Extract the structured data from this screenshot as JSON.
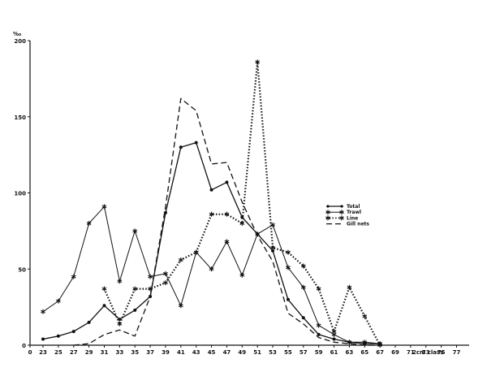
{
  "chart_data": {
    "type": "line",
    "y_unit_label": "‰",
    "xlabel": "2cm class",
    "x_ticks": [
      0,
      23,
      25,
      27,
      29,
      31,
      33,
      35,
      37,
      39,
      41,
      43,
      45,
      47,
      49,
      51,
      53,
      55,
      57,
      59,
      61,
      63,
      65,
      67,
      69,
      71,
      73,
      75,
      77
    ],
    "x_tick_labels": [
      "0",
      "23",
      "25",
      "27",
      "29",
      "31",
      "33",
      "35",
      "37",
      "39",
      "41",
      "43",
      "45",
      "47",
      "49",
      "51",
      "53",
      "55",
      "57",
      "59",
      "61",
      "63",
      "65",
      "67",
      "69",
      "71",
      "73",
      "75",
      "77"
    ],
    "y_ticks": [
      0,
      50,
      100,
      150,
      200
    ],
    "y_tick_labels": [
      "0",
      "50",
      "100",
      "150",
      "200"
    ],
    "ylim": [
      0,
      200
    ],
    "legend": [
      {
        "label": "Total",
        "style": "solid-dot"
      },
      {
        "label": "Trawl",
        "style": "solid-star"
      },
      {
        "label": "Line",
        "style": "dotted-star"
      },
      {
        "label": "Gill nets",
        "style": "dashed"
      }
    ],
    "series": [
      {
        "key": "total",
        "style": "solid-dot",
        "x": [
          23,
          25,
          27,
          29,
          31,
          33,
          35,
          37,
          39,
          41,
          43,
          45,
          47,
          49,
          51,
          53,
          55,
          57,
          59,
          61,
          63,
          65,
          67
        ],
        "values": [
          4,
          6,
          9,
          15,
          26,
          17,
          23,
          32,
          87,
          130,
          133,
          102,
          107,
          84,
          73,
          62,
          30,
          18,
          7,
          4,
          2,
          1,
          1
        ]
      },
      {
        "key": "trawl",
        "style": "solid-star",
        "x": [
          23,
          25,
          27,
          29,
          31,
          33,
          35,
          37,
          39,
          41,
          43,
          45,
          47,
          49,
          51,
          53,
          55,
          57,
          59,
          61,
          63,
          65,
          67
        ],
        "values": [
          22,
          29,
          45,
          80,
          91,
          42,
          75,
          45,
          47,
          26,
          61,
          50,
          68,
          46,
          73,
          79,
          51,
          38,
          13,
          7,
          2,
          2,
          1
        ]
      },
      {
        "key": "line",
        "style": "dotted-star",
        "x": [
          31,
          33,
          35,
          37,
          39,
          41,
          43,
          45,
          47,
          49,
          51,
          53,
          55,
          57,
          59,
          61,
          63,
          65,
          67
        ],
        "values": [
          37,
          14,
          37,
          37,
          41,
          56,
          61,
          86,
          86,
          80,
          186,
          64,
          61,
          52,
          37,
          9,
          38,
          19,
          0
        ]
      },
      {
        "key": "gill",
        "style": "dashed",
        "x": [
          27,
          29,
          31,
          33,
          35,
          37,
          39,
          41,
          43,
          45,
          47,
          49,
          51,
          53,
          55,
          57,
          59,
          61,
          63,
          65,
          67
        ],
        "values": [
          0,
          1,
          7,
          10,
          6,
          32,
          91,
          162,
          154,
          119,
          120,
          94,
          72,
          55,
          21,
          14,
          5,
          2,
          1,
          0,
          0
        ]
      }
    ]
  }
}
